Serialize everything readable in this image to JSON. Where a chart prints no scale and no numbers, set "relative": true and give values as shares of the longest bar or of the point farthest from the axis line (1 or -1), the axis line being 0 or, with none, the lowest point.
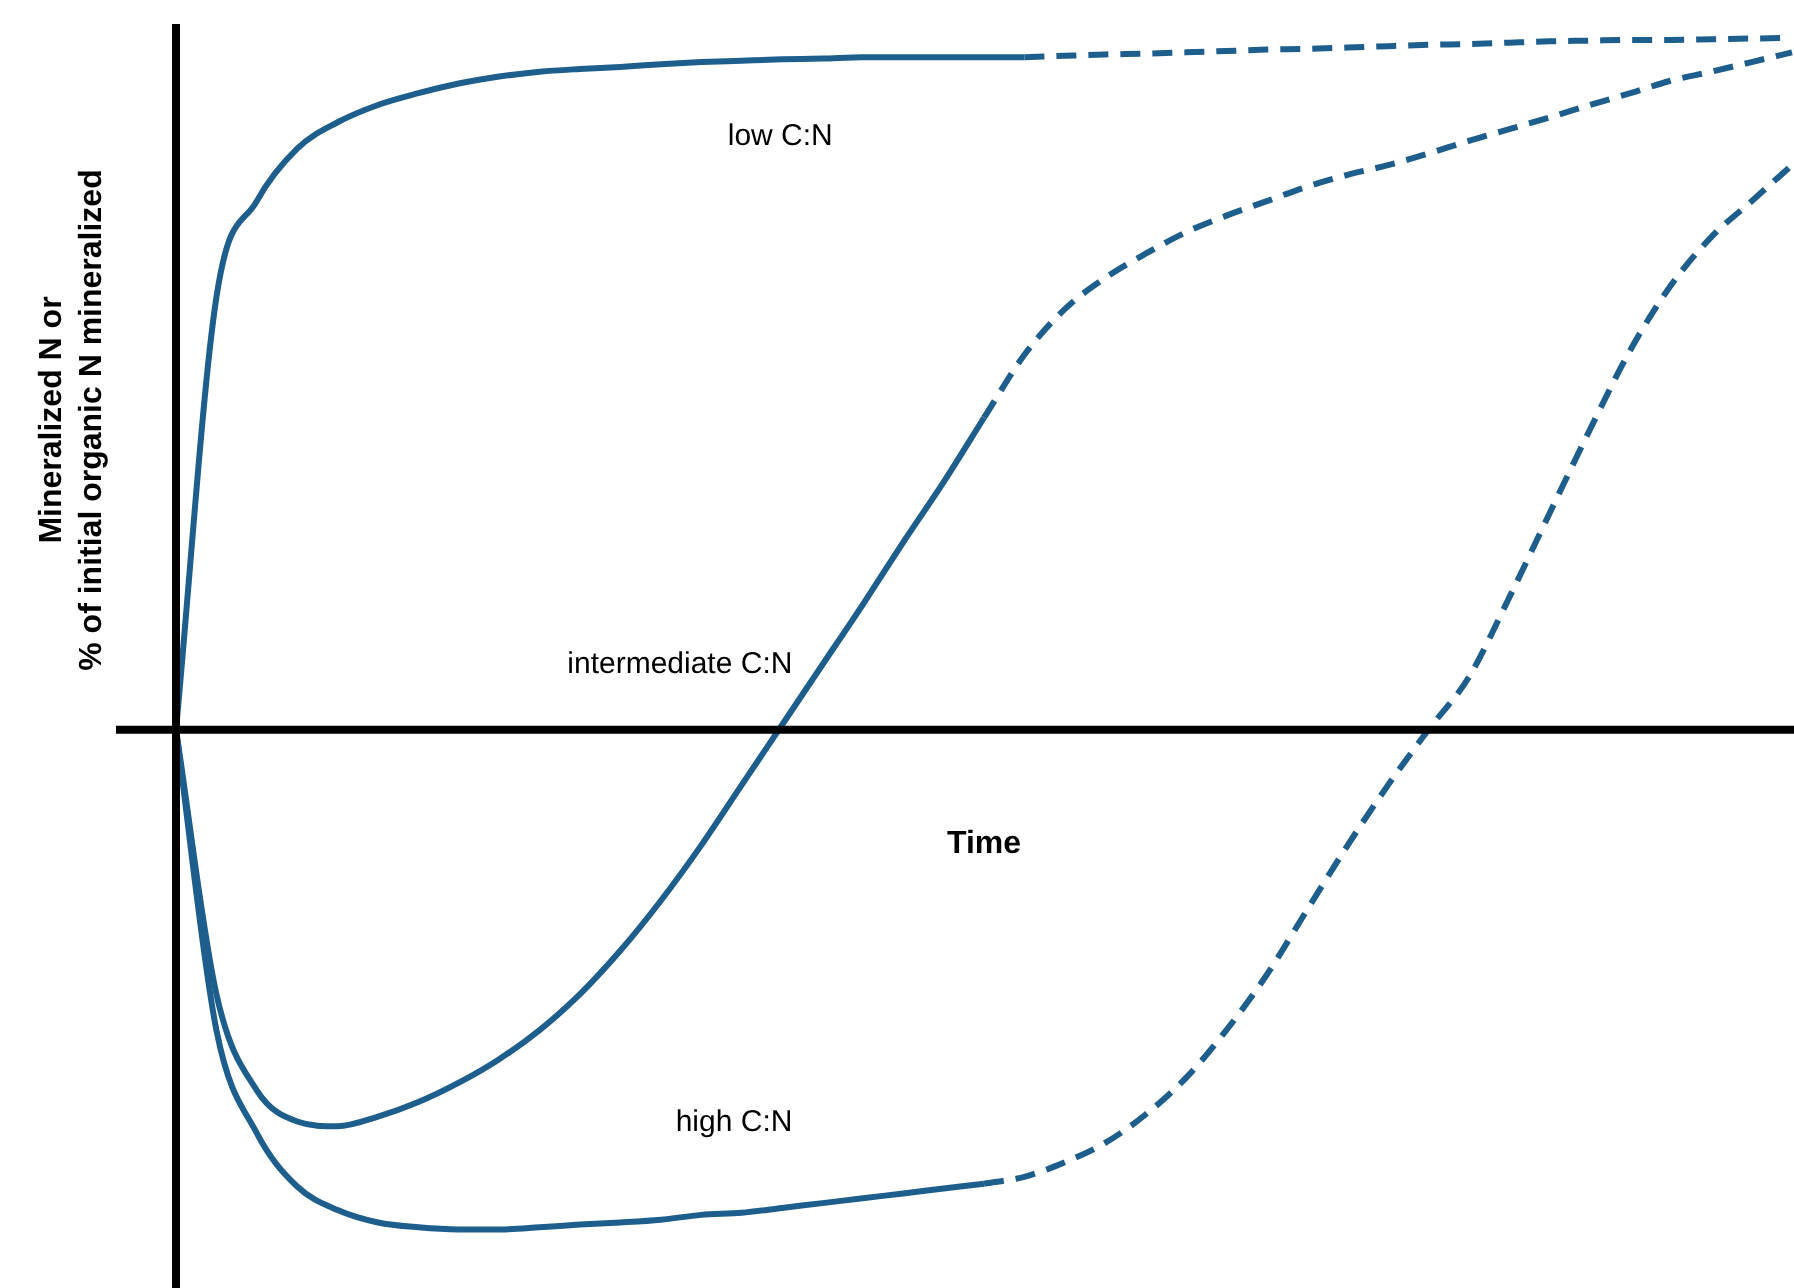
{
  "chart_data": {
    "type": "line",
    "relative": true,
    "xlabel": "Time",
    "ylabel": "Mineralized N or\n% of initial organic N mineralized",
    "legend": false,
    "marker": "none",
    "categories": [
      null,
      null,
      null,
      null,
      null,
      null,
      null,
      null,
      null,
      null,
      null,
      null,
      null,
      null,
      null,
      null,
      null,
      null,
      null,
      null,
      null,
      null,
      null,
      null,
      null,
      null,
      null,
      null,
      null,
      null,
      null,
      null,
      null,
      null,
      null,
      null,
      null,
      null,
      null,
      null,
      null
    ],
    "series": [
      {
        "name": "low C:N",
        "color": "#1d5e8c",
        "line_style": "solid",
        "values": [
          0,
          0.625,
          0.764,
          0.84,
          0.878,
          0.903,
          0.92,
          0.934,
          0.944,
          0.951,
          0.955,
          0.958,
          0.962,
          0.965,
          0.967,
          0.969,
          0.97,
          0.972,
          0.972,
          0.972,
          0.972,
          0.972,
          null,
          null,
          null,
          null,
          null,
          null,
          null,
          null,
          null,
          null,
          null,
          null,
          null,
          null,
          null,
          null,
          null,
          null,
          null
        ]
      },
      {
        "color": "#1d5e8c",
        "line_style": "dashed",
        "values": [
          null,
          null,
          null,
          null,
          null,
          null,
          null,
          null,
          null,
          null,
          null,
          null,
          null,
          null,
          null,
          null,
          null,
          null,
          null,
          null,
          null,
          0.972,
          0.974,
          0.976,
          0.977,
          0.979,
          0.981,
          0.983,
          0.984,
          0.986,
          0.988,
          0.99,
          0.991,
          0.993,
          0.995,
          0.996,
          0.997,
          0.997,
          0.998,
          0.999,
          1
        ]
      },
      {
        "name": "intermediate C:N",
        "color": "#1d5e8c",
        "line_style": "solid",
        "values": [
          0,
          -0.382,
          -0.521,
          -0.566,
          -0.573,
          -0.559,
          -0.538,
          -0.51,
          -0.476,
          -0.434,
          -0.382,
          -0.319,
          -0.247,
          -0.167,
          -0.08,
          0.007,
          0.094,
          0.181,
          0.271,
          0.358,
          0.451,
          null,
          null,
          null,
          null,
          null,
          null,
          null,
          null,
          null,
          null,
          null,
          null,
          null,
          null,
          null,
          null,
          null,
          null,
          null,
          null
        ]
      },
      {
        "color": "#1d5e8c",
        "line_style": "dashed",
        "values": [
          null,
          null,
          null,
          null,
          null,
          null,
          null,
          null,
          null,
          null,
          null,
          null,
          null,
          null,
          null,
          null,
          null,
          null,
          null,
          null,
          0.451,
          0.542,
          0.608,
          0.653,
          0.688,
          0.719,
          0.743,
          0.764,
          0.785,
          0.802,
          0.816,
          0.833,
          0.851,
          0.868,
          0.885,
          0.903,
          0.92,
          0.938,
          0.951,
          0.965,
          0.979
        ]
      },
      {
        "name": "high C:N",
        "color": "#1d5e8c",
        "line_style": "solid",
        "values": [
          0,
          -0.434,
          -0.583,
          -0.66,
          -0.694,
          -0.712,
          -0.719,
          -0.722,
          -0.722,
          -0.719,
          -0.715,
          -0.712,
          -0.708,
          -0.701,
          -0.698,
          -0.691,
          -0.684,
          -0.677,
          -0.67,
          -0.663,
          -0.656,
          null,
          null,
          null,
          null,
          null,
          null,
          null,
          null,
          null,
          null,
          null,
          null,
          null,
          null,
          null,
          null,
          null,
          null,
          null,
          null
        ]
      },
      {
        "color": "#1d5e8c",
        "line_style": "dashed",
        "values": [
          null,
          null,
          null,
          null,
          null,
          null,
          null,
          null,
          null,
          null,
          null,
          null,
          null,
          null,
          null,
          null,
          null,
          null,
          null,
          null,
          -0.656,
          -0.646,
          -0.625,
          -0.597,
          -0.556,
          -0.503,
          -0.434,
          -0.354,
          -0.26,
          -0.167,
          -0.08,
          0,
          0.076,
          0.191,
          0.313,
          0.434,
          0.549,
          0.642,
          0.712,
          0.764,
          0.816
        ]
      }
    ]
  }
}
